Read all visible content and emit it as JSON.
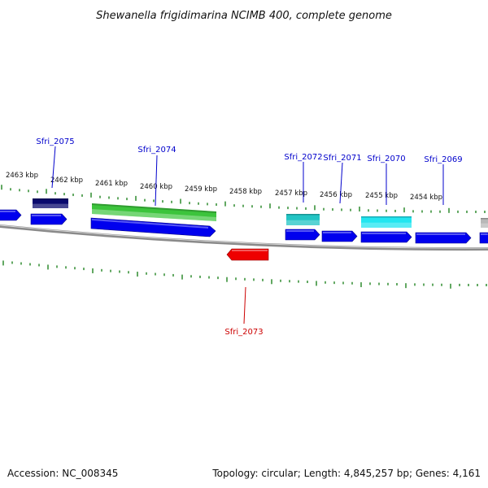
{
  "title": "Shewanella frigidimarina NCIMB 400, complete genome",
  "footer": {
    "accession": "Accession: NC_008345",
    "stats": "Topology: circular; Length: 4,845,257 bp; Genes: 4,161"
  },
  "scale_labels": [
    "2463 kbp",
    "2462 kbp",
    "2461 kbp",
    "2460 kbp",
    "2459 kbp",
    "2458 kbp",
    "2457 kbp",
    "2456 kbp",
    "2455 kbp",
    "2454 kbp"
  ],
  "gene_labels": [
    {
      "name": "Sfri_2075",
      "color": "#0000cc"
    },
    {
      "name": "Sfri_2074",
      "color": "#0000cc"
    },
    {
      "name": "Sfri_2072",
      "color": "#0000cc"
    },
    {
      "name": "Sfri_2071",
      "color": "#0000cc"
    },
    {
      "name": "Sfri_2070",
      "color": "#0000cc"
    },
    {
      "name": "Sfri_2069",
      "color": "#0000cc"
    },
    {
      "name": "Sfri_2073",
      "color": "#cc0000"
    }
  ],
  "colors": {
    "backbone": "#8a8a8a",
    "tick": "#2e8b2e",
    "cds_forward": "#0000ee",
    "cds_reverse": "#ee0000",
    "gene_navy": "#0a0a6e",
    "gene_green": "#3cc43c",
    "gene_teal": "#22c4c4",
    "gene_cyan": "#22e6f0",
    "gene_grey": "#b8b8b8"
  }
}
